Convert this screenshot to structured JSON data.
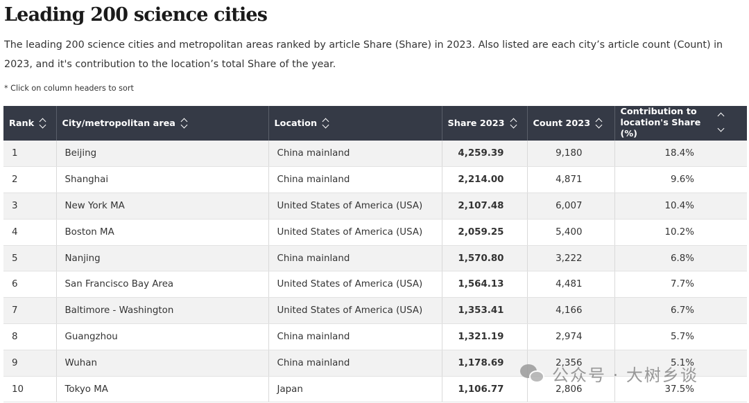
{
  "title": "Leading 200 science cities",
  "description": "The leading 200 science cities and metropolitan areas ranked by article Share (Share) in 2023. Also listed are each city’s article count (Count) in 2023, and it's contribution to the location’s total Share of the year.",
  "note": "* Click on column headers to sort",
  "columns": {
    "rank": "Rank",
    "city": "City/metropolitan area",
    "location": "Location",
    "share": "Share 2023",
    "count": "Count 2023",
    "contribution": "Contribution to location's Share (%)"
  },
  "rows": [
    {
      "rank": "1",
      "city": "Beijing",
      "location": "China mainland",
      "share": "4,259.39",
      "count": "9,180",
      "contribution": "18.4%"
    },
    {
      "rank": "2",
      "city": "Shanghai",
      "location": "China mainland",
      "share": "2,214.00",
      "count": "4,871",
      "contribution": "9.6%"
    },
    {
      "rank": "3",
      "city": "New York MA",
      "location": "United States of America (USA)",
      "share": "2,107.48",
      "count": "6,007",
      "contribution": "10.4%"
    },
    {
      "rank": "4",
      "city": "Boston MA",
      "location": "United States of America (USA)",
      "share": "2,059.25",
      "count": "5,400",
      "contribution": "10.2%"
    },
    {
      "rank": "5",
      "city": "Nanjing",
      "location": "China mainland",
      "share": "1,570.80",
      "count": "3,222",
      "contribution": "6.8%"
    },
    {
      "rank": "6",
      "city": "San Francisco Bay Area",
      "location": "United States of America (USA)",
      "share": "1,564.13",
      "count": "4,481",
      "contribution": "7.7%"
    },
    {
      "rank": "7",
      "city": "Baltimore - Washington",
      "location": "United States of America (USA)",
      "share": "1,353.41",
      "count": "4,166",
      "contribution": "6.7%"
    },
    {
      "rank": "8",
      "city": "Guangzhou",
      "location": "China mainland",
      "share": "1,321.19",
      "count": "2,974",
      "contribution": "5.7%"
    },
    {
      "rank": "9",
      "city": "Wuhan",
      "location": "China mainland",
      "share": "1,178.69",
      "count": "2,356",
      "contribution": "5.1%"
    },
    {
      "rank": "10",
      "city": "Tokyo MA",
      "location": "Japan",
      "share": "1,106.77",
      "count": "2,806",
      "contribution": "37.5%"
    }
  ],
  "watermark": {
    "text": "公众号 · 大树乡谈",
    "icon": "wechat-icon"
  }
}
